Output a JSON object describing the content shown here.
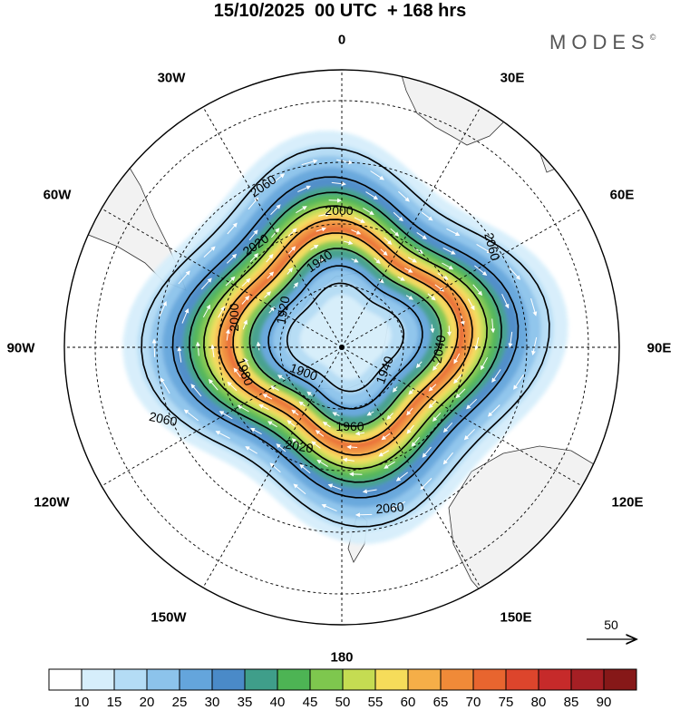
{
  "title": "15/10/2025  00 UTC  + 168 hrs",
  "brand": "MODES",
  "brand_mark": "©",
  "longitude_labels": {
    "lon_0": "0",
    "lon_30e": "30E",
    "lon_60e": "60E",
    "lon_90e": "90E",
    "lon_120e": "120E",
    "lon_150e": "150E",
    "lon_180": "180",
    "lon_150w": "150W",
    "lon_120w": "120W",
    "lon_90w": "90W",
    "lon_60w": "60W",
    "lon_30w": "30W"
  },
  "contour_labels": [
    "2060",
    "2060",
    "2060",
    "2060",
    "2040",
    "2020",
    "2020",
    "2000",
    "2000",
    "1980",
    "1960",
    "1940",
    "1940",
    "1920",
    "1900"
  ],
  "vector_reference": "50",
  "colorbar": {
    "ticks": [
      "10",
      "15",
      "20",
      "25",
      "30",
      "35",
      "40",
      "45",
      "50",
      "55",
      "60",
      "65",
      "70",
      "75",
      "80",
      "85",
      "90"
    ],
    "colors": [
      "#ffffff",
      "#d6eefb",
      "#b4dcf5",
      "#8cc3eb",
      "#64a5dc",
      "#4a8ac8",
      "#3f9e8a",
      "#4db454",
      "#7ec74e",
      "#c5dc52",
      "#f6dc5a",
      "#f5ae48",
      "#f08a38",
      "#e8652f",
      "#dd452c",
      "#c62a2a",
      "#a51f24",
      "#861818"
    ]
  },
  "colors": {
    "land": "#f2f2f2",
    "coast": "#333333",
    "grid": "#000000"
  }
}
